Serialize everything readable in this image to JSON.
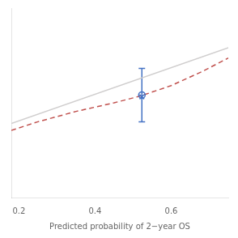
{
  "chart_data": {
    "type": "line",
    "xlabel": "Predicted probability of 2−year OS",
    "xlim": [
      0.18,
      0.75
    ],
    "xticks": [
      0.2,
      0.4,
      0.6
    ],
    "ylim": [
      -0.15,
      0.95
    ],
    "tick_labels": "x",
    "grid": false,
    "series": [
      {
        "type": "line",
        "color": "#d0cece",
        "line_style": "solid",
        "x": [
          0.18,
          0.75
        ],
        "values": [
          0.28,
          0.72
        ]
      },
      {
        "type": "line",
        "color": "#c0504d",
        "line_style": "dashed",
        "x": [
          0.18,
          0.25,
          0.35,
          0.45,
          0.52,
          0.6,
          0.68,
          0.75
        ],
        "values": [
          0.24,
          0.29,
          0.35,
          0.4,
          0.44,
          0.5,
          0.58,
          0.66
        ]
      },
      {
        "type": "scatter",
        "color": "#4472c4",
        "marker": "circle",
        "x": [
          0.523
        ],
        "values": [
          0.445
        ],
        "error_low": [
          0.29
        ],
        "error_high": [
          0.6
        ]
      },
      {
        "type": "scatter",
        "color": "#4472c4",
        "marker": "x",
        "x": [
          0.523
        ],
        "values": [
          0.435
        ]
      }
    ]
  }
}
